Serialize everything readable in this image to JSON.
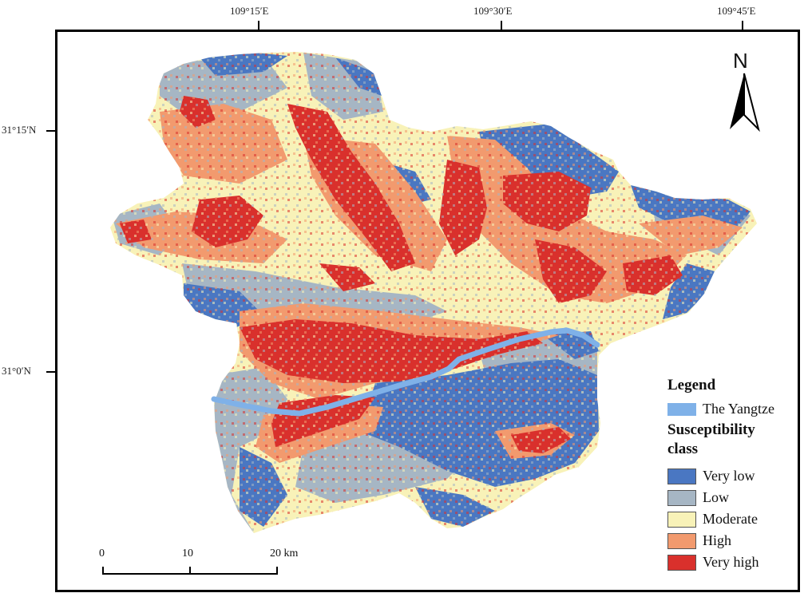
{
  "graticule": {
    "top_labels": [
      "109°15′E",
      "109°30′E",
      "109°45′E"
    ],
    "left_labels": [
      "31°15′N",
      "31°0′N"
    ]
  },
  "north_arrow": {
    "letter": "N",
    "icon": "north-arrow-icon"
  },
  "legend": {
    "title": "Legend",
    "river_label": "The Yangtze",
    "river_color": "#7fb1e8",
    "class_title": "Susceptibility class",
    "classes": [
      {
        "label": "Very low",
        "color": "#4a77c2"
      },
      {
        "label": "Low",
        "color": "#a6b6c4"
      },
      {
        "label": "Moderate",
        "color": "#f8f2b8"
      },
      {
        "label": "High",
        "color": "#f29a6e"
      },
      {
        "label": "Very high",
        "color": "#d9302c"
      }
    ]
  },
  "scale_bar": {
    "labels": [
      "0",
      "10",
      "20 km"
    ]
  }
}
